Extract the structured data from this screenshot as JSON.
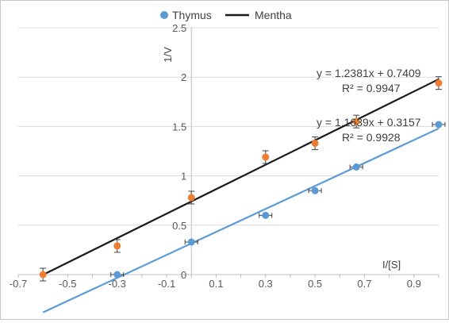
{
  "chart_data": {
    "type": "scatter",
    "title": "",
    "xlabel": "I/[S]",
    "ylabel": "1/V",
    "xlim": [
      -0.7,
      1.0
    ],
    "ylim": [
      0,
      2.5
    ],
    "x_ticks": [
      "-0.7",
      "-0.5",
      "-0.3",
      "-0.1",
      "0.1",
      "0.3",
      "0.5",
      "0.7",
      "0.9"
    ],
    "y_ticks": [
      "0",
      "0.5",
      "1",
      "1.5",
      "2",
      "2.5"
    ],
    "grid": true,
    "legend_position": "top",
    "series": [
      {
        "name": "Thymus",
        "color": "#5b9bd5",
        "points": [
          {
            "x": -0.3,
            "y": 0.0
          },
          {
            "x": 0.0,
            "y": 0.33
          },
          {
            "x": 0.3,
            "y": 0.6
          },
          {
            "x": 0.5,
            "y": 0.85
          },
          {
            "x": 0.667,
            "y": 1.09
          },
          {
            "x": 1.0,
            "y": 1.52
          }
        ],
        "trendline": {
          "slope": 1.1639,
          "intercept": 0.3157,
          "x_range": [
            -0.6,
            1.0
          ],
          "equation": "y = 1.1639x + 0.3157",
          "r2": "R² = 0.9928"
        }
      },
      {
        "name": "Mentha",
        "color": "#ed7d31",
        "line_color": "#1a1a1a",
        "points": [
          {
            "x": -0.6,
            "y": 0.0
          },
          {
            "x": -0.3,
            "y": 0.29
          },
          {
            "x": 0.0,
            "y": 0.78
          },
          {
            "x": 0.3,
            "y": 1.19
          },
          {
            "x": 0.5,
            "y": 1.33
          },
          {
            "x": 0.667,
            "y": 1.55
          },
          {
            "x": 1.0,
            "y": 1.94
          }
        ],
        "trendline": {
          "slope": 1.2381,
          "intercept": 0.7409,
          "x_range": [
            -0.6,
            1.0
          ],
          "equation": "y = 1.2381x + 0.7409",
          "r2": "R² = 0.9947"
        }
      }
    ]
  }
}
